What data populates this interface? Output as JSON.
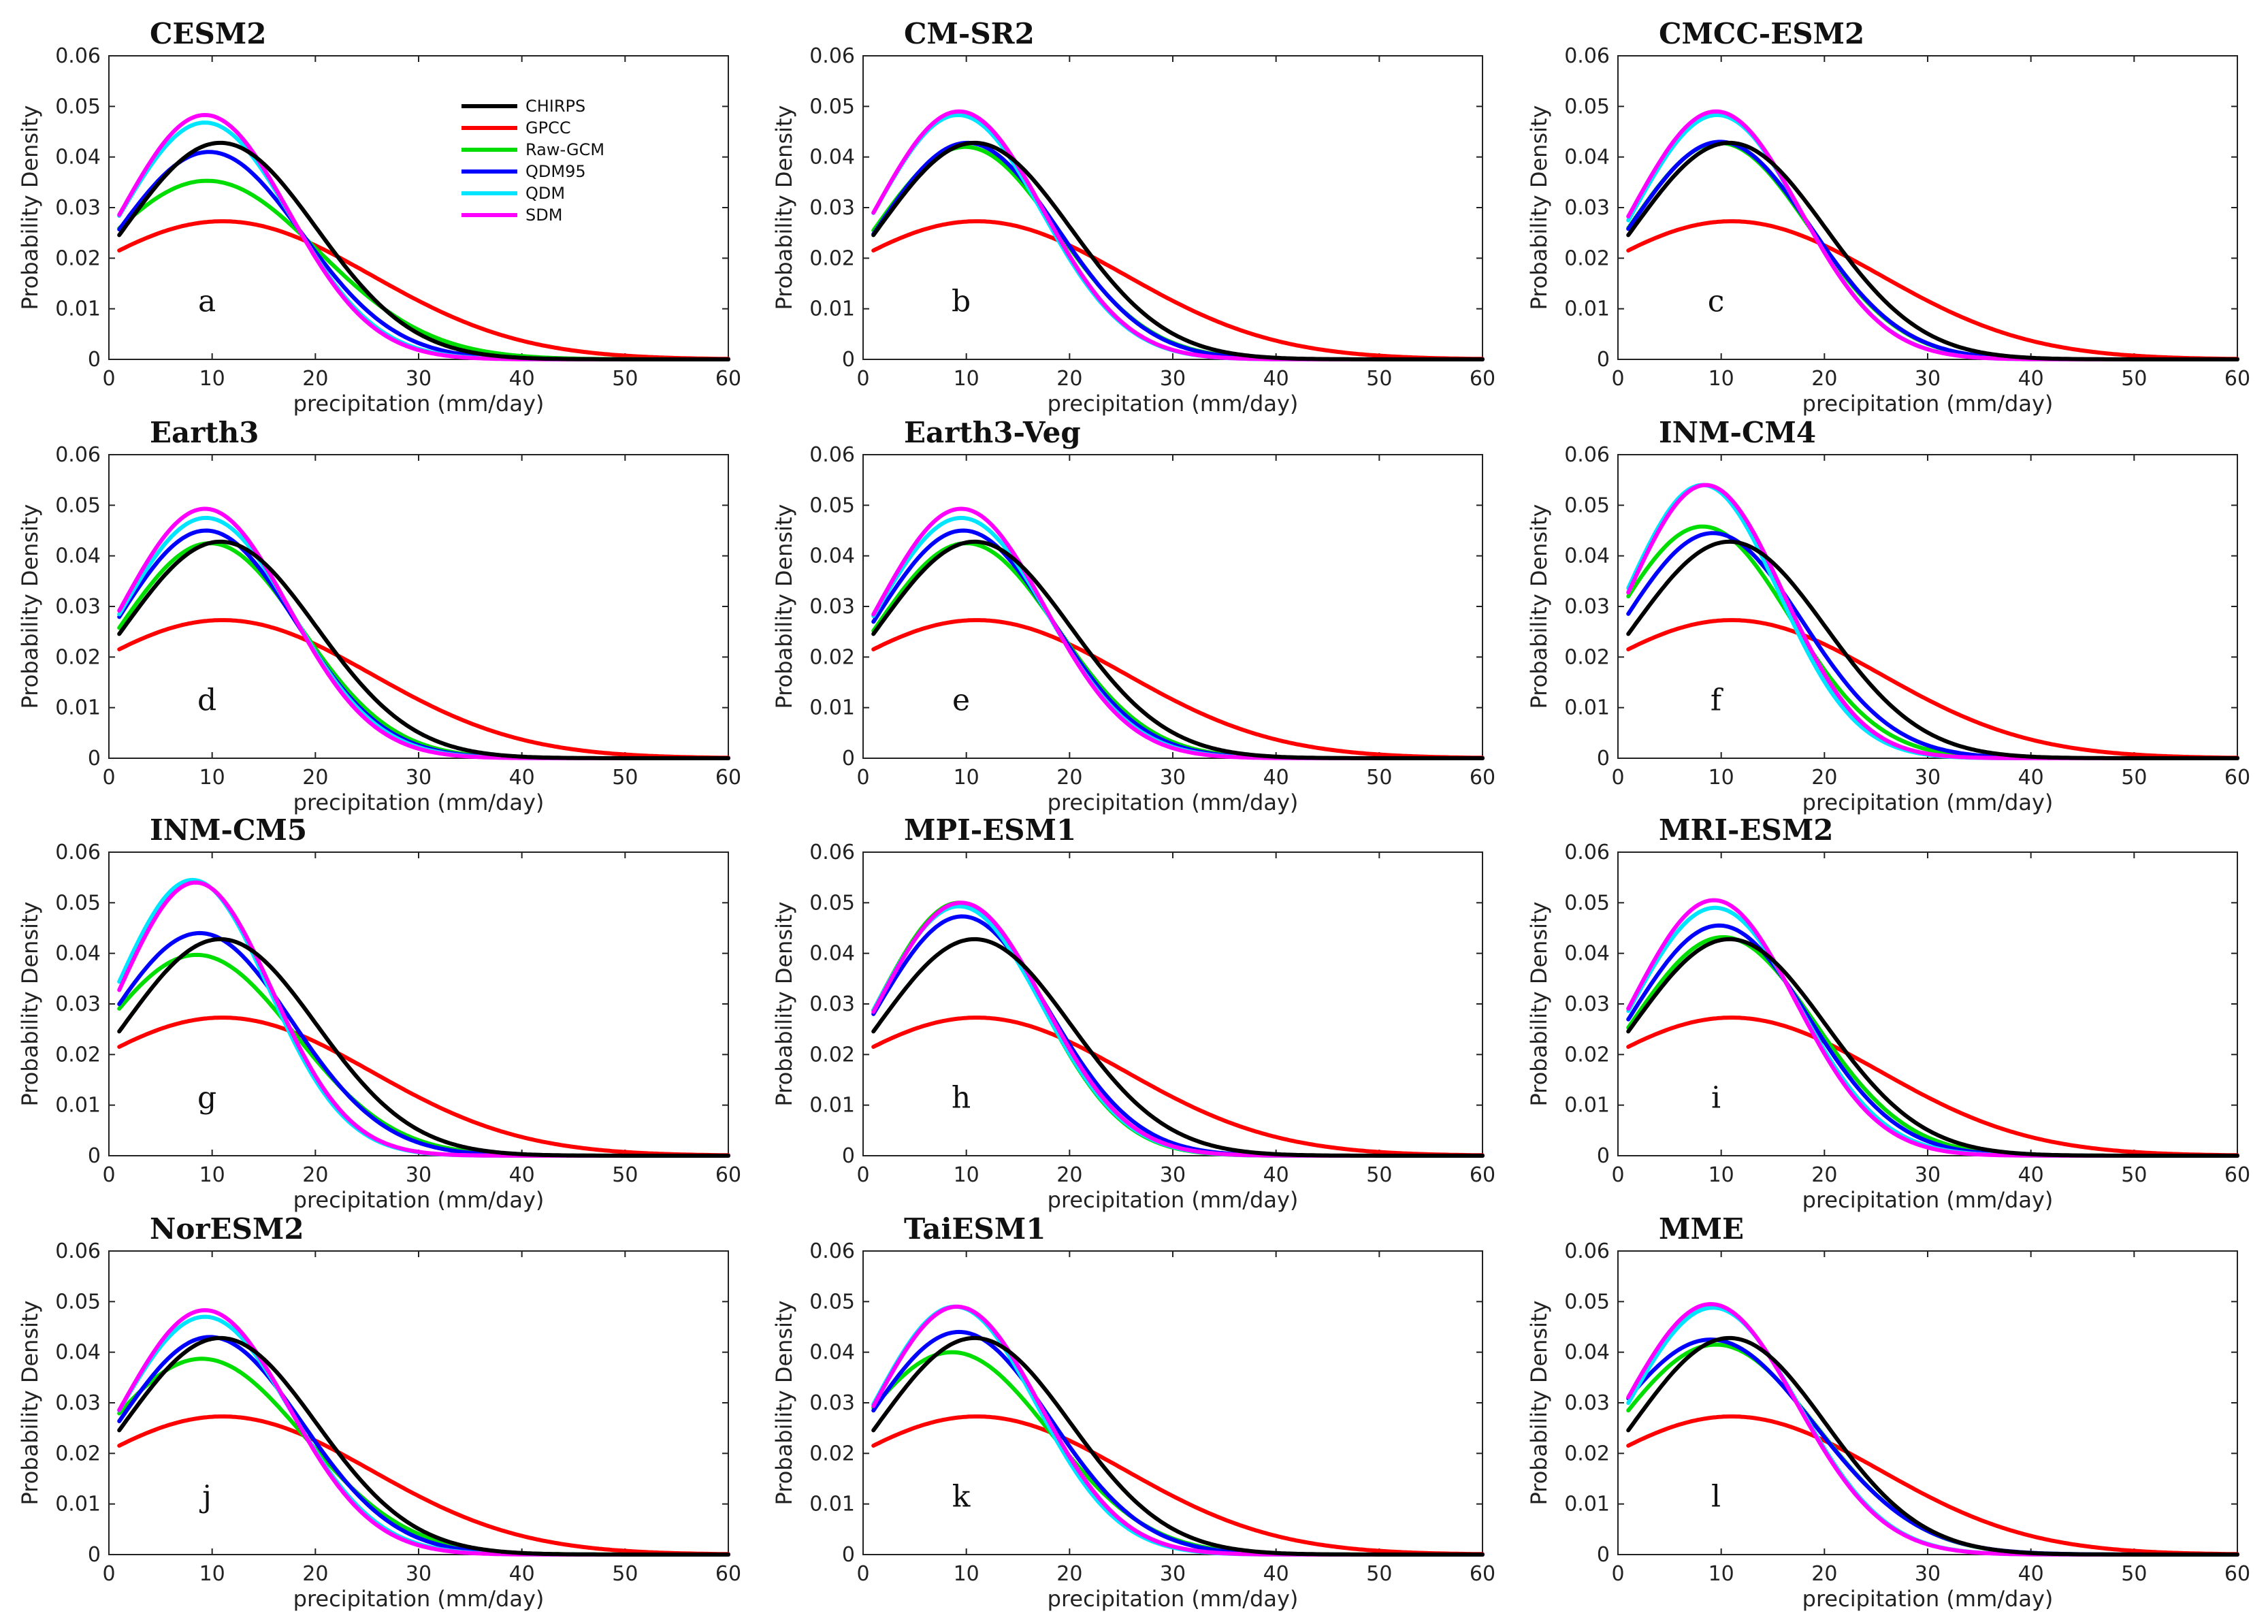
{
  "chart_data": {
    "type": "line",
    "layout": "3x4 grid of small multiples",
    "xlabel": "precipitation (mm/day)",
    "ylabel": "Probability Density",
    "xlim": [
      0,
      60
    ],
    "ylim": [
      0,
      0.06
    ],
    "xticks": [
      "0",
      "10",
      "20",
      "30",
      "40",
      "50",
      "60"
    ],
    "yticks": [
      "0",
      "0.01",
      "0.02",
      "0.03",
      "0.04",
      "0.05",
      "0.06"
    ],
    "x_range": [
      1,
      60
    ],
    "legend": [
      {
        "name": "CHIRPS",
        "color": "#000000"
      },
      {
        "name": "GPCC",
        "color": "#ff0000"
      },
      {
        "name": "Raw-GCM",
        "color": "#00dd00"
      },
      {
        "name": "QDM95",
        "color": "#0000ff"
      },
      {
        "name": "QDM",
        "color": "#00e5ff"
      },
      {
        "name": "SDM",
        "color": "#ff00ff"
      }
    ],
    "series_params_note": "each series is a normal-shaped density: peak value, mode (mm/day), spread (mm/day)",
    "panels": [
      {
        "title": "CESM2",
        "label": "a",
        "series": {
          "CHIRPS": [
            0.0428,
            10.8,
            9.3
          ],
          "GPCC": [
            0.0273,
            11.0,
            14.5
          ],
          "Raw-GCM": [
            0.0353,
            9.5,
            10.8
          ],
          "QDM95": [
            0.041,
            9.7,
            9.0
          ],
          "QDM": [
            0.0468,
            9.3,
            8.3
          ],
          "SDM": [
            0.0483,
            9.3,
            8.1
          ]
        }
      },
      {
        "title": "CM-SR2",
        "label": "b",
        "series": {
          "CHIRPS": [
            0.0428,
            10.8,
            9.3
          ],
          "GPCC": [
            0.0273,
            11.0,
            14.5
          ],
          "Raw-GCM": [
            0.042,
            9.9,
            8.9
          ],
          "QDM95": [
            0.0428,
            10.1,
            8.7
          ],
          "QDM": [
            0.0483,
            9.2,
            8.1
          ],
          "SDM": [
            0.049,
            9.3,
            8.1
          ]
        }
      },
      {
        "title": "CMCC-ESM2",
        "label": "c",
        "series": {
          "CHIRPS": [
            0.0428,
            10.8,
            9.3
          ],
          "GPCC": [
            0.0273,
            11.0,
            14.5
          ],
          "Raw-GCM": [
            0.0428,
            9.8,
            8.8
          ],
          "QDM95": [
            0.043,
            9.9,
            8.8
          ],
          "QDM": [
            0.0483,
            9.6,
            8.1
          ],
          "SDM": [
            0.049,
            9.5,
            8.1
          ]
        }
      },
      {
        "title": "Earth3",
        "label": "d",
        "series": {
          "CHIRPS": [
            0.0428,
            10.8,
            9.3
          ],
          "GPCC": [
            0.0273,
            11.0,
            14.5
          ],
          "Raw-GCM": [
            0.0425,
            9.8,
            8.8
          ],
          "QDM95": [
            0.045,
            9.4,
            8.6
          ],
          "QDM": [
            0.0475,
            9.4,
            8.3
          ],
          "SDM": [
            0.0493,
            9.3,
            8.1
          ]
        }
      },
      {
        "title": "Earth3-Veg",
        "label": "e",
        "series": {
          "CHIRPS": [
            0.0428,
            10.8,
            9.3
          ],
          "GPCC": [
            0.0273,
            11.0,
            14.5
          ],
          "Raw-GCM": [
            0.0425,
            10.0,
            8.8
          ],
          "QDM95": [
            0.045,
            9.7,
            8.6
          ],
          "QDM": [
            0.0475,
            9.5,
            8.3
          ],
          "SDM": [
            0.0493,
            9.5,
            8.1
          ]
        }
      },
      {
        "title": "INM-CM4",
        "label": "f",
        "series": {
          "CHIRPS": [
            0.0428,
            10.8,
            9.3
          ],
          "GPCC": [
            0.0273,
            11.0,
            14.5
          ],
          "Raw-GCM": [
            0.0458,
            8.2,
            8.5
          ],
          "QDM95": [
            0.0445,
            9.2,
            8.7
          ],
          "QDM": [
            0.054,
            8.2,
            7.4
          ],
          "SDM": [
            0.054,
            8.5,
            7.5
          ]
        }
      },
      {
        "title": "INM-CM5",
        "label": "g",
        "series": {
          "CHIRPS": [
            0.0428,
            10.8,
            9.3
          ],
          "GPCC": [
            0.0273,
            11.0,
            14.5
          ],
          "Raw-GCM": [
            0.0397,
            8.5,
            9.5
          ],
          "QDM95": [
            0.044,
            8.8,
            8.9
          ],
          "QDM": [
            0.0545,
            8.1,
            7.4
          ],
          "SDM": [
            0.054,
            8.4,
            7.4
          ]
        }
      },
      {
        "title": "MPI-ESM1",
        "label": "h",
        "series": {
          "CHIRPS": [
            0.0428,
            10.8,
            9.3
          ],
          "GPCC": [
            0.0273,
            11.0,
            14.5
          ],
          "Raw-GCM": [
            0.05,
            9.3,
            7.9
          ],
          "QDM95": [
            0.0473,
            9.6,
            8.4
          ],
          "QDM": [
            0.0493,
            9.3,
            8.0
          ],
          "SDM": [
            0.05,
            9.5,
            8.0
          ]
        }
      },
      {
        "title": "MRI-ESM2",
        "label": "i",
        "series": {
          "CHIRPS": [
            0.0428,
            10.8,
            9.3
          ],
          "GPCC": [
            0.0273,
            11.0,
            14.5
          ],
          "Raw-GCM": [
            0.0432,
            10.2,
            8.9
          ],
          "QDM95": [
            0.0455,
            9.8,
            8.6
          ],
          "QDM": [
            0.049,
            9.4,
            8.1
          ],
          "SDM": [
            0.0505,
            9.3,
            7.9
          ]
        }
      },
      {
        "title": "NorESM2",
        "label": "j",
        "series": {
          "CHIRPS": [
            0.0428,
            10.8,
            9.3
          ],
          "GPCC": [
            0.0273,
            11.0,
            14.5
          ],
          "Raw-GCM": [
            0.0387,
            9.0,
            9.9
          ],
          "QDM95": [
            0.043,
            9.8,
            8.9
          ],
          "QDM": [
            0.047,
            9.3,
            8.3
          ],
          "SDM": [
            0.0483,
            9.3,
            8.1
          ]
        }
      },
      {
        "title": "TaiESM1",
        "label": "k",
        "series": {
          "CHIRPS": [
            0.0428,
            10.8,
            9.3
          ],
          "GPCC": [
            0.0273,
            11.0,
            14.5
          ],
          "Raw-GCM": [
            0.04,
            8.6,
            9.5
          ],
          "QDM95": [
            0.044,
            9.3,
            8.9
          ],
          "QDM": [
            0.049,
            8.9,
            7.9
          ],
          "SDM": [
            0.049,
            9.1,
            8.0
          ]
        }
      },
      {
        "title": "MME",
        "label": "l",
        "series": {
          "CHIRPS": [
            0.0428,
            10.8,
            9.3
          ],
          "GPCC": [
            0.0273,
            11.0,
            14.5
          ],
          "Raw-GCM": [
            0.0415,
            9.5,
            9.8
          ],
          "QDM95": [
            0.0425,
            9.0,
            10.0
          ],
          "QDM": [
            0.0488,
            9.2,
            8.3
          ],
          "SDM": [
            0.0495,
            9.0,
            8.3
          ]
        }
      }
    ]
  }
}
